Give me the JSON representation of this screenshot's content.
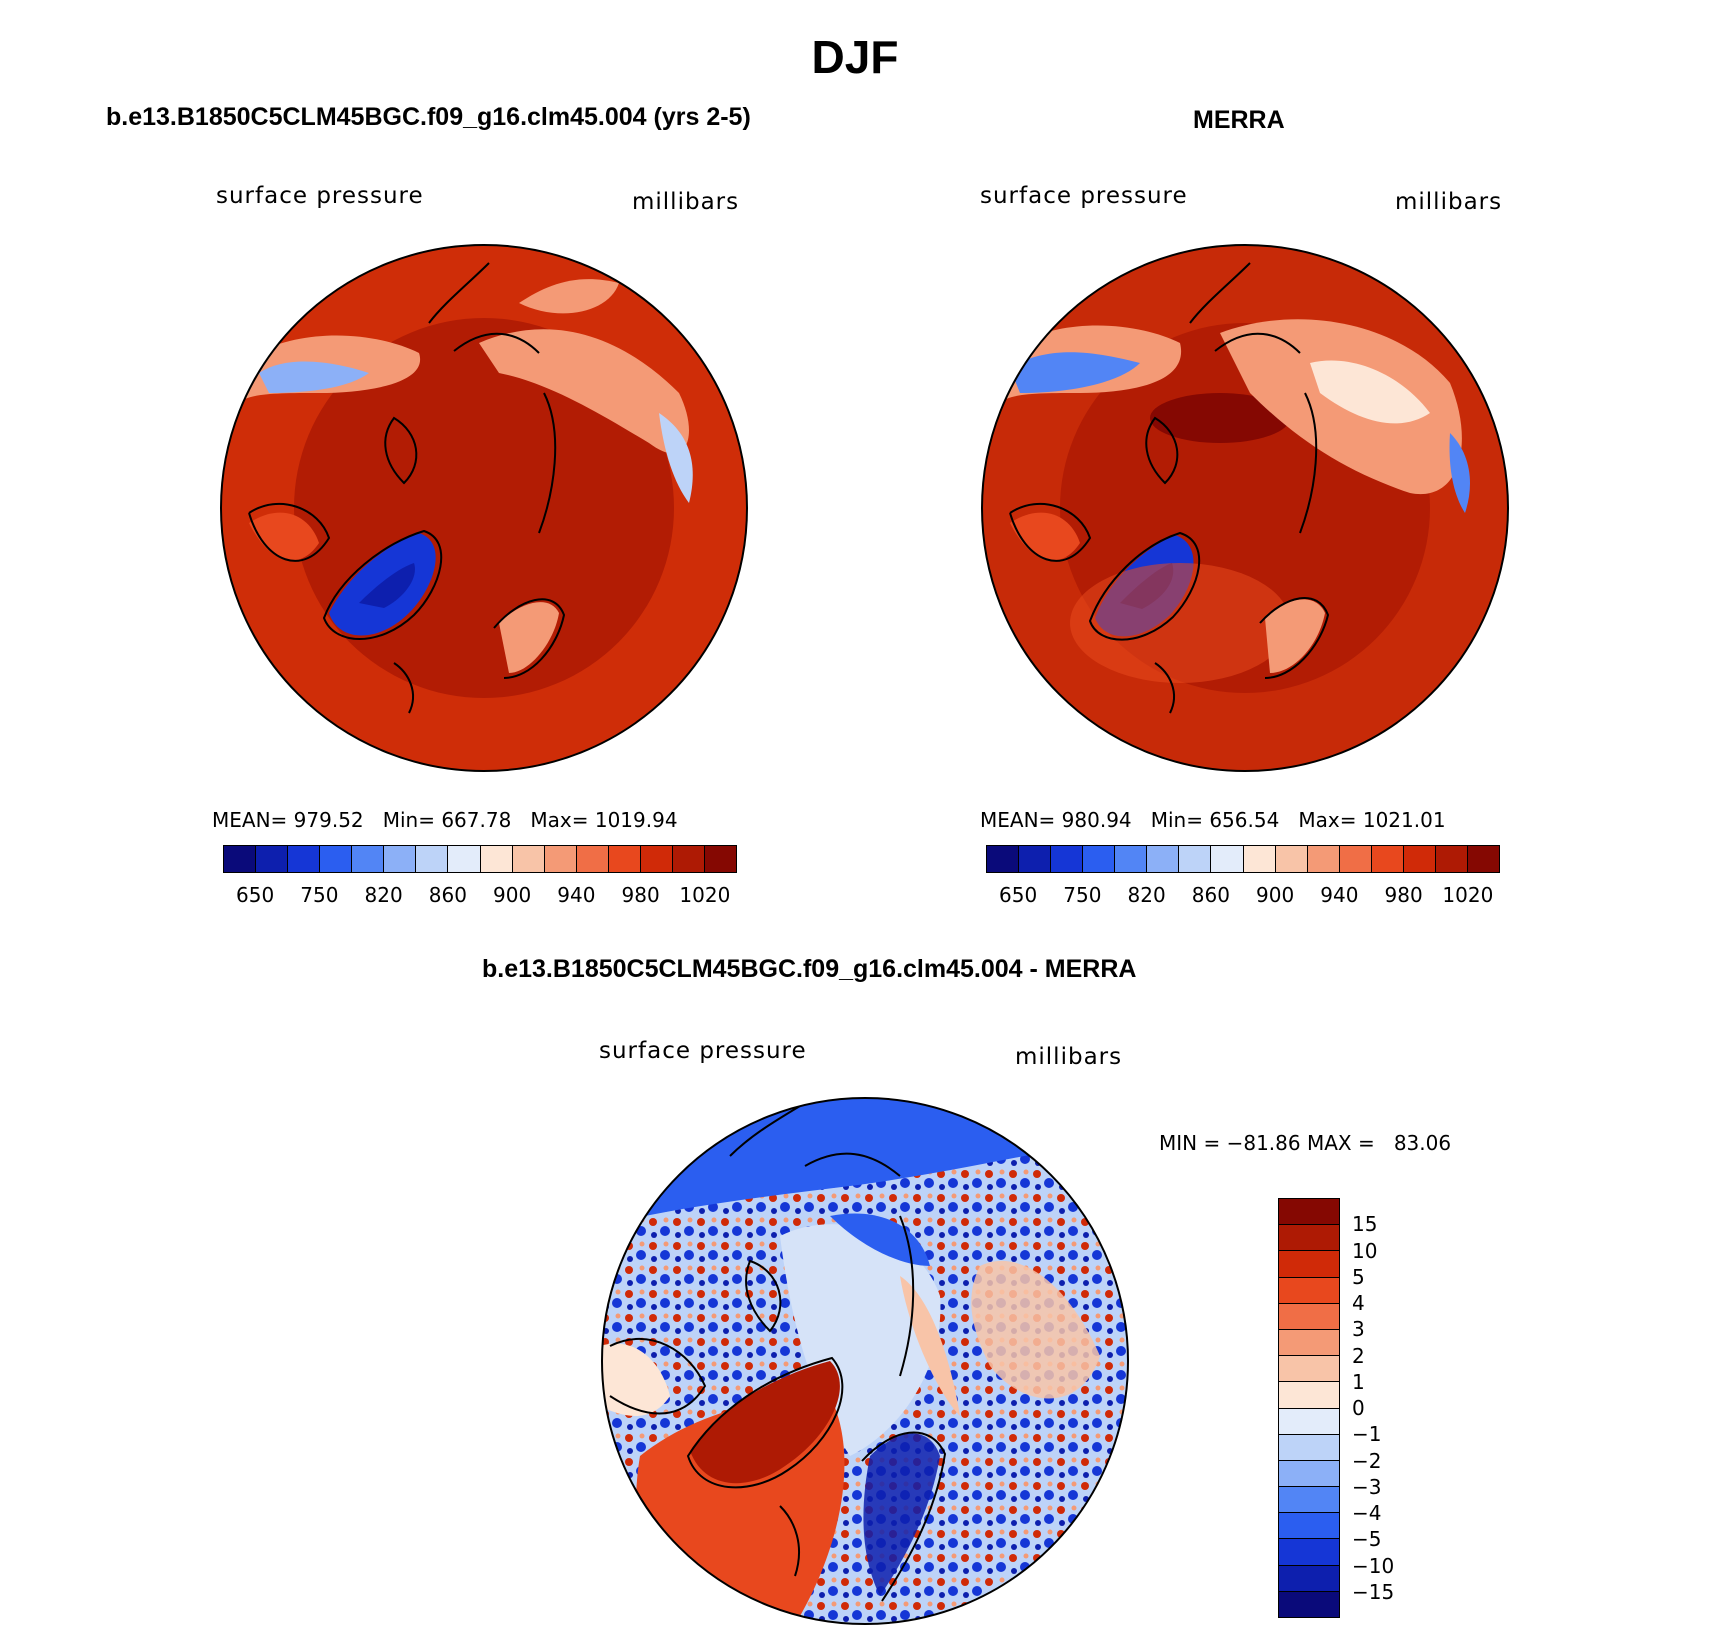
{
  "title": "DJF",
  "panels": {
    "left": {
      "title": "b.e13.B1850C5CLM45BGC.f09_g16.clm45.004 (yrs 2-5)",
      "variable": "surface pressure",
      "units": "millibars",
      "mean_label": "MEAN=",
      "mean": "979.52",
      "min_label": "Min=",
      "min": "667.78",
      "max_label": "Max=",
      "max": "1019.94"
    },
    "right": {
      "title": "MERRA",
      "variable": "surface pressure",
      "units": "millibars",
      "mean_label": "MEAN=",
      "mean": "980.94",
      "min_label": "Min=",
      "min": "656.54",
      "max_label": "Max=",
      "max": "1021.01"
    },
    "diff": {
      "title": "b.e13.B1850C5CLM45BGC.f09_g16.clm45.004 - MERRA",
      "variable": "surface pressure",
      "units": "millibars",
      "min_label": "MIN =",
      "min": "−81.86",
      "max_label": "MAX =",
      "max": "83.06"
    }
  },
  "colorbar_abs": {
    "tick_labels": [
      "650",
      "750",
      "820",
      "860",
      "900",
      "940",
      "980",
      "1020"
    ],
    "colors": [
      "#0a0a7a",
      "#0d1fae",
      "#1536d6",
      "#2b5ef0",
      "#5285f5",
      "#8cb0f7",
      "#bdd3f8",
      "#e3ecfa",
      "#fde6d6",
      "#f8c4a8",
      "#f49a76",
      "#f06e46",
      "#e8481e",
      "#d02a08",
      "#ae1a04",
      "#850802"
    ]
  },
  "colorbar_diff": {
    "tick_labels": [
      "15",
      "10",
      "5",
      "4",
      "3",
      "2",
      "1",
      "0",
      "−1",
      "−2",
      "−3",
      "−4",
      "−5",
      "−10",
      "−15"
    ],
    "colors": [
      "#850802",
      "#ae1a04",
      "#d02a08",
      "#e8481e",
      "#f06e46",
      "#f49a76",
      "#f8c4a8",
      "#fde6d6",
      "#e3ecfa",
      "#bdd3f8",
      "#8cb0f7",
      "#5285f5",
      "#2b5ef0",
      "#1536d6",
      "#0d1fae",
      "#0a0a7a"
    ]
  },
  "map_colors": {
    "base_left": "#cf2d08",
    "base_right": "#c72a08",
    "arctic": "#b21c04",
    "land_high": "#e8481e",
    "land_light": "#f49a76",
    "greenland_blue": "#1536d6",
    "greenland_dark": "#0d1fae",
    "diff_blue": "#2b5ef0",
    "diff_light": "#d6e3f8",
    "diff_red": "#e8481e",
    "diff_dark_red": "#ae1a04"
  }
}
